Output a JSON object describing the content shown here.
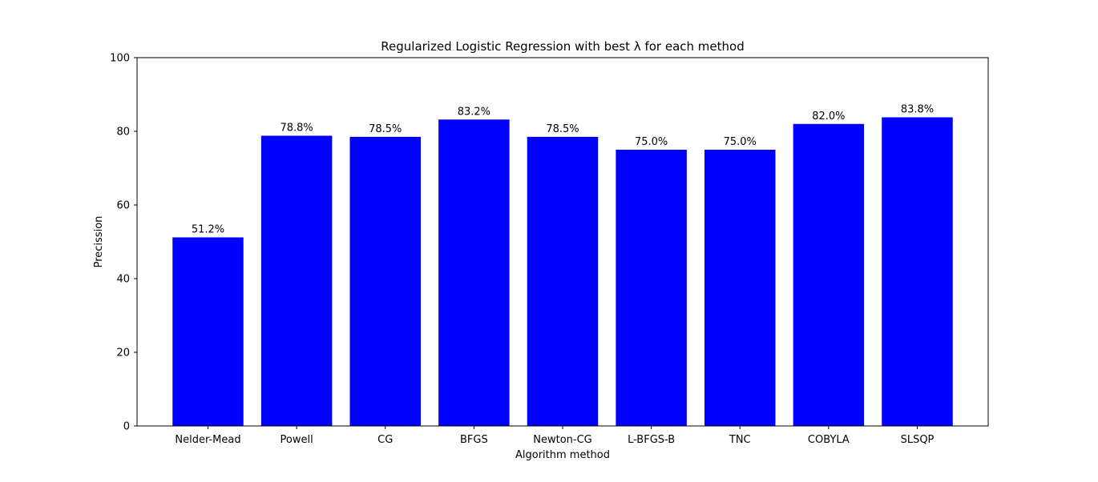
{
  "chart_data": {
    "type": "bar",
    "title": "Regularized Logistic Regression with best λ for each method",
    "xlabel": "Algorithm method",
    "ylabel": "Precission",
    "categories": [
      "Nelder-Mead",
      "Powell",
      "CG",
      "BFGS",
      "Newton-CG",
      "L-BFGS-B",
      "TNC",
      "COBYLA",
      "SLSQP"
    ],
    "values": [
      51.2,
      78.8,
      78.5,
      83.2,
      78.5,
      75.0,
      75.0,
      82.0,
      83.8
    ],
    "data_labels": [
      "51.2%",
      "78.8%",
      "78.5%",
      "83.2%",
      "78.5%",
      "75.0%",
      "75.0%",
      "82.0%",
      "83.8%"
    ],
    "ylim": [
      0,
      100
    ],
    "yticks": [
      0,
      20,
      40,
      60,
      80,
      100
    ],
    "ytick_labels": [
      "0",
      "20",
      "40",
      "60",
      "80",
      "100"
    ],
    "grid": false,
    "legend": "none",
    "bar_color": "#0000ff"
  }
}
